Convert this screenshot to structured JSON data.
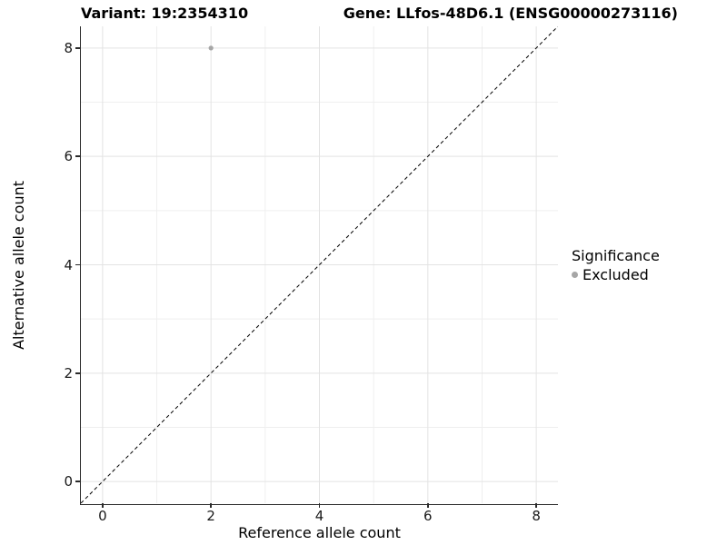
{
  "chart_data": {
    "type": "scatter",
    "title_left": "Variant: 19:2354310",
    "title_right": "Gene: LLfos-48D6.1 (ENSG00000273116)",
    "xlabel": "Reference allele count",
    "ylabel": "Alternative allele count",
    "xlim": [
      -0.4,
      8.4
    ],
    "ylim": [
      -0.4,
      8.4
    ],
    "x_ticks": [
      0,
      2,
      4,
      6,
      8
    ],
    "y_ticks": [
      0,
      2,
      4,
      6,
      8
    ],
    "x_minor_ticks": [
      1,
      3,
      5,
      7
    ],
    "y_minor_ticks": [
      1,
      3,
      5,
      7
    ],
    "grid": "major+minor",
    "points": [
      {
        "x": 2,
        "y": 8,
        "significance": "Excluded"
      }
    ],
    "reference_line": {
      "kind": "identity y=x",
      "style": "dashed",
      "color": "#000000"
    },
    "legend": {
      "title": "Significance",
      "position": "right",
      "items": [
        {
          "label": "Excluded",
          "color": "#a6a6a6"
        }
      ]
    }
  },
  "colors": {
    "background": "#ffffff",
    "grid_major": "#e3e3e3",
    "grid_minor": "#efefef",
    "axis_line": "#2b2b2b",
    "tick_text": "#1a1a1a",
    "point": "#a6a6a6"
  }
}
